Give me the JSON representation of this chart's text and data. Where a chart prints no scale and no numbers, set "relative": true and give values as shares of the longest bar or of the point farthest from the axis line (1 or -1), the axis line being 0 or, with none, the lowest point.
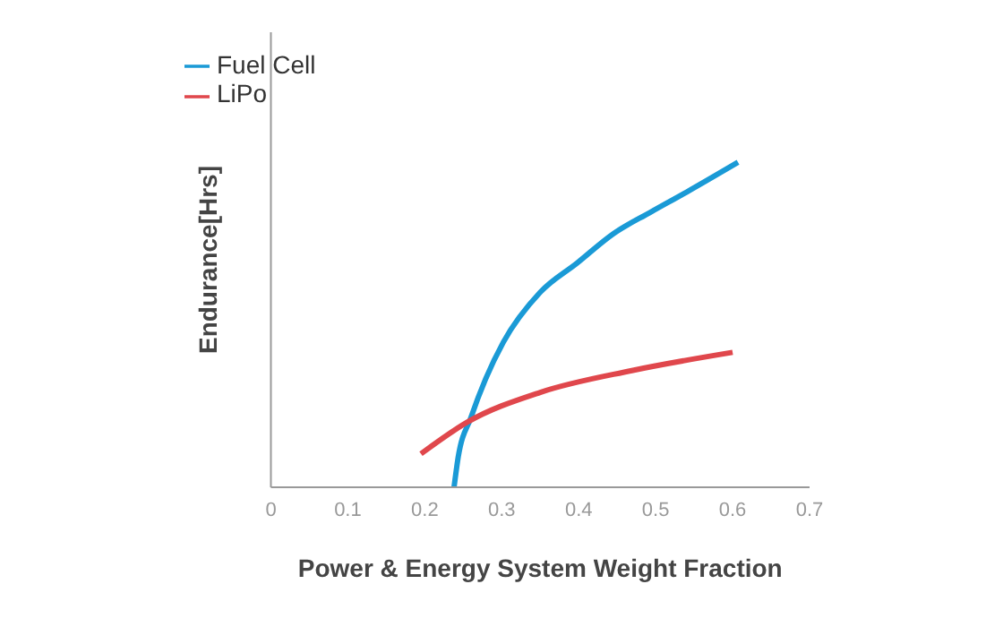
{
  "chart_data": {
    "type": "line",
    "relative": true,
    "xlabel": "Power & Energy System Weight Fraction",
    "ylabel": "Endurance[Hrs]",
    "xlim": [
      0,
      0.7
    ],
    "xticks": [
      0,
      0.1,
      0.2,
      0.3,
      0.4,
      0.5,
      0.6,
      0.7
    ],
    "legend": "top left",
    "grid": false,
    "marker": "none",
    "line_style": "solid",
    "series": [
      {
        "name": "Fuel Cell",
        "color": "#1a9ad6",
        "x": [
          0.238,
          0.243,
          0.26,
          0.279,
          0.302,
          0.35,
          0.398,
          0.445,
          0.493,
          0.54,
          0.607
        ],
        "values": [
          0,
          0.087,
          0.215,
          0.333,
          0.446,
          0.6,
          0.69,
          0.78,
          0.846,
          0.908,
          1
        ]
      },
      {
        "name": "LiPo",
        "color": "#e0474c",
        "x": [
          0.195,
          0.255,
          0.35,
          0.469,
          0.6
        ],
        "values": [
          0.103,
          0.2,
          0.292,
          0.359,
          0.415
        ]
      }
    ]
  }
}
